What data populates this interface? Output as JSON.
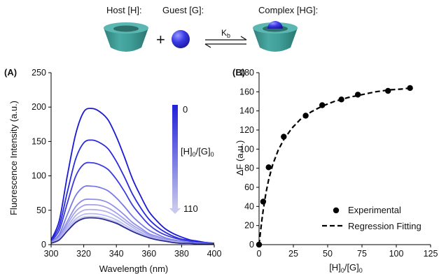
{
  "scheme": {
    "host_label": "Host [H]:",
    "guest_label": "Guest [G]:",
    "complex_label": "Complex [HG]:",
    "plus": "+",
    "constant": "K",
    "constant_sub": "b",
    "colors": {
      "host": "#3f9e98",
      "guest": "#3a3ae6"
    }
  },
  "chart_data": [
    {
      "panel": "(A)",
      "type": "line",
      "xlabel": "Wavelength (nm)",
      "ylabel": "Fluorescence Intensity (a.u.)",
      "xlim": [
        300,
        400
      ],
      "ylim": [
        0,
        250
      ],
      "xticks": [
        300,
        320,
        340,
        360,
        380,
        400
      ],
      "yticks": [
        0,
        50,
        100,
        150,
        200,
        250
      ],
      "grid": false,
      "legend": {
        "type": "gradient-arrow",
        "title_main": "[H]",
        "title_sub1": "0",
        "title_mid": "/[G]",
        "title_sub2": "0",
        "start_label": "0",
        "end_label": "110",
        "color_start": "#2020d8",
        "color_end": "#c8c8ee"
      },
      "x": [
        300,
        305,
        310,
        315,
        320,
        325,
        330,
        335,
        340,
        345,
        350,
        355,
        360,
        365,
        370,
        375,
        380,
        385,
        390,
        395,
        400
      ],
      "series": [
        {
          "color": "#1a1ad6",
          "values": [
            7,
            35,
            101,
            160,
            193,
            198,
            193,
            181,
            157,
            127,
            95,
            70,
            48,
            34,
            23,
            16,
            11,
            7,
            5,
            3,
            2
          ]
        },
        {
          "color": "#2a2add",
          "values": [
            6,
            27,
            77,
            124,
            148,
            152,
            148,
            139,
            121,
            98,
            73,
            53,
            37,
            26,
            18,
            12,
            8,
            6,
            4,
            3,
            2
          ]
        },
        {
          "color": "#3a3ae0",
          "values": [
            5,
            21,
            61,
            99,
            117,
            119,
            116,
            109,
            95,
            77,
            57,
            42,
            29,
            20,
            14,
            10,
            7,
            5,
            3,
            2,
            1
          ]
        },
        {
          "color": "#7a7ae6",
          "values": [
            4,
            15,
            44,
            71,
            84,
            85,
            83,
            78,
            68,
            55,
            41,
            30,
            21,
            15,
            10,
            7,
            5,
            3,
            2,
            2,
            1
          ]
        },
        {
          "color": "#9090ea",
          "values": [
            3,
            12,
            34,
            55,
            65,
            66,
            65,
            61,
            53,
            43,
            32,
            24,
            16,
            12,
            8,
            6,
            4,
            3,
            2,
            1,
            1
          ]
        },
        {
          "color": "#a2a2ed",
          "values": [
            3,
            10,
            30,
            48,
            57,
            58,
            57,
            53,
            46,
            37,
            28,
            21,
            14,
            10,
            7,
            5,
            3,
            2,
            2,
            1,
            1
          ]
        },
        {
          "color": "#b0b0f0",
          "values": [
            2,
            9,
            26,
            42,
            50,
            51,
            50,
            47,
            41,
            33,
            25,
            18,
            12,
            9,
            6,
            4,
            3,
            2,
            1,
            1,
            1
          ]
        },
        {
          "color": "#bcbcf2",
          "values": [
            2,
            8,
            23,
            37,
            44,
            45,
            44,
            41,
            36,
            29,
            22,
            16,
            11,
            8,
            5,
            4,
            3,
            2,
            1,
            1,
            1
          ]
        },
        {
          "color": "#c6c6f4",
          "values": [
            2,
            7,
            21,
            34,
            40,
            41,
            40,
            37,
            33,
            26,
            20,
            15,
            10,
            7,
            5,
            3,
            2,
            2,
            1,
            1,
            1
          ]
        },
        {
          "color": "#2c2c90",
          "values": [
            2,
            7,
            20,
            32,
            38,
            39,
            38,
            35,
            31,
            25,
            19,
            14,
            10,
            7,
            5,
            3,
            2,
            2,
            1,
            1,
            1
          ]
        }
      ]
    },
    {
      "panel": "(B)",
      "type": "scatter",
      "xlabel_main": "[H]",
      "xlabel_sub1": "0",
      "xlabel_mid": "/[G]",
      "xlabel_sub2": "0",
      "ylabel": "ΔF (a.u.)",
      "xlim": [
        0,
        125
      ],
      "ylim": [
        0,
        180
      ],
      "xticks": [
        0,
        25,
        50,
        75,
        100,
        125
      ],
      "yticks": [
        0,
        20,
        40,
        60,
        80,
        100,
        120,
        140,
        160,
        180
      ],
      "grid": false,
      "legend_position": "bottom-right",
      "series": [
        {
          "name": "Experimental",
          "kind": "points",
          "x": [
            0,
            3,
            7,
            18,
            34,
            46,
            60,
            72,
            94,
            110
          ],
          "y": [
            0,
            45,
            81,
            113,
            135,
            146,
            152,
            157,
            161,
            164
          ]
        },
        {
          "name": "Regression Fitting",
          "kind": "dashed-line",
          "x": [
            0,
            1,
            2,
            3,
            5,
            7,
            10,
            14,
            18,
            24,
            30,
            38,
            46,
            55,
            65,
            75,
            85,
            95,
            105,
            110
          ],
          "y": [
            0,
            13,
            25,
            36,
            54,
            68,
            84,
            99,
            110,
            122,
            131,
            139,
            145,
            150,
            154,
            157,
            160,
            162,
            163,
            164
          ]
        }
      ]
    }
  ]
}
